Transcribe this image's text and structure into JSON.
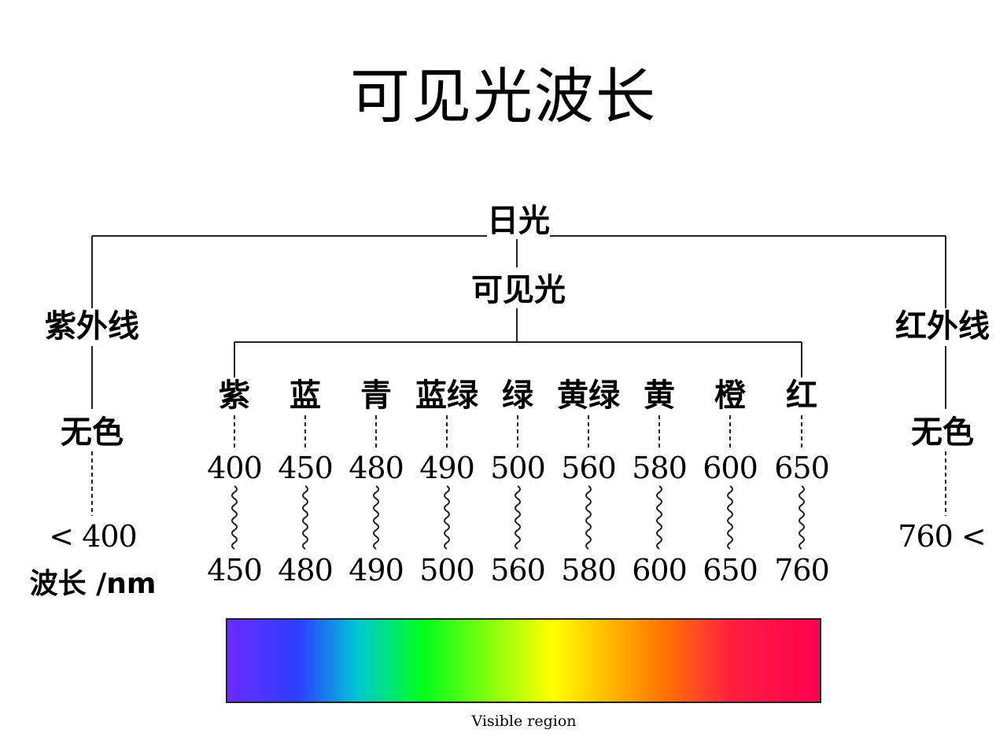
{
  "title": "可见光波长",
  "root": "日光",
  "visible_light": "可见光",
  "uv": {
    "name": "紫外线",
    "color": "无色",
    "range": "< 400"
  },
  "ir": {
    "name": "红外线",
    "color": "无色",
    "range": "760 <"
  },
  "wavelength_label": "波长 /nm",
  "colors": [
    {
      "name": "紫",
      "from": "400",
      "to": "450"
    },
    {
      "name": "蓝",
      "from": "450",
      "to": "480"
    },
    {
      "name": "青",
      "from": "480",
      "to": "490"
    },
    {
      "name": "蓝绿",
      "from": "490",
      "to": "500"
    },
    {
      "name": "绿",
      "from": "500",
      "to": "560"
    },
    {
      "name": "黄绿",
      "from": "560",
      "to": "580"
    },
    {
      "name": "黄",
      "from": "580",
      "to": "600"
    },
    {
      "name": "橙",
      "from": "600",
      "to": "650"
    },
    {
      "name": "红",
      "from": "650",
      "to": "760"
    }
  ],
  "spectrum_caption": "Visible region",
  "spectrum_colors": [
    "#6a2cff",
    "#2d3dff",
    "#00c8d4",
    "#00ff1e",
    "#ffff00",
    "#ff7a00",
    "#ff1f3f",
    "#ff0050"
  ]
}
